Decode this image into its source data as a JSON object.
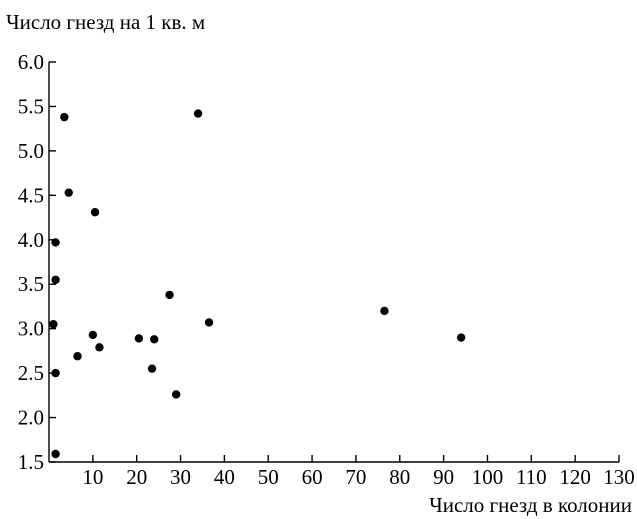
{
  "chart_data": {
    "type": "scatter",
    "title": "",
    "ylabel": "Число гнезд на 1 кв. м",
    "xlabel": "Число гнезд в колонии",
    "xlim": [
      0,
      130
    ],
    "ylim": [
      1.5,
      6.0
    ],
    "xticks": [
      10,
      20,
      30,
      40,
      50,
      60,
      70,
      80,
      90,
      100,
      110,
      120,
      130
    ],
    "yticks": [
      1.5,
      2.0,
      2.5,
      3.0,
      3.5,
      4.0,
      4.5,
      5.0,
      5.5,
      6.0
    ],
    "xtick_labels": [
      "10",
      "20",
      "30",
      "40",
      "50",
      "60",
      "70",
      "80",
      "90",
      "100",
      "110",
      "120",
      "130"
    ],
    "ytick_labels": [
      "1.5",
      "2.0",
      "2.5",
      "3.0",
      "3.5",
      "4.0",
      "4.5",
      "5.0",
      "5.5",
      "6.0"
    ],
    "grid": false,
    "points": [
      {
        "x": 3.5,
        "y": 5.38
      },
      {
        "x": 4.5,
        "y": 4.53
      },
      {
        "x": 10.5,
        "y": 4.31
      },
      {
        "x": 1.5,
        "y": 3.97
      },
      {
        "x": 1.5,
        "y": 3.55
      },
      {
        "x": 1.0,
        "y": 3.05
      },
      {
        "x": 10.0,
        "y": 2.93
      },
      {
        "x": 11.5,
        "y": 2.79
      },
      {
        "x": 6.5,
        "y": 2.69
      },
      {
        "x": 1.5,
        "y": 2.5
      },
      {
        "x": 1.5,
        "y": 1.59
      },
      {
        "x": 20.5,
        "y": 2.89
      },
      {
        "x": 24.0,
        "y": 2.88
      },
      {
        "x": 23.5,
        "y": 2.55
      },
      {
        "x": 27.5,
        "y": 3.38
      },
      {
        "x": 29.0,
        "y": 2.26
      },
      {
        "x": 34.0,
        "y": 5.42
      },
      {
        "x": 36.5,
        "y": 3.07
      },
      {
        "x": 76.5,
        "y": 3.2
      },
      {
        "x": 94.0,
        "y": 2.9
      }
    ]
  }
}
